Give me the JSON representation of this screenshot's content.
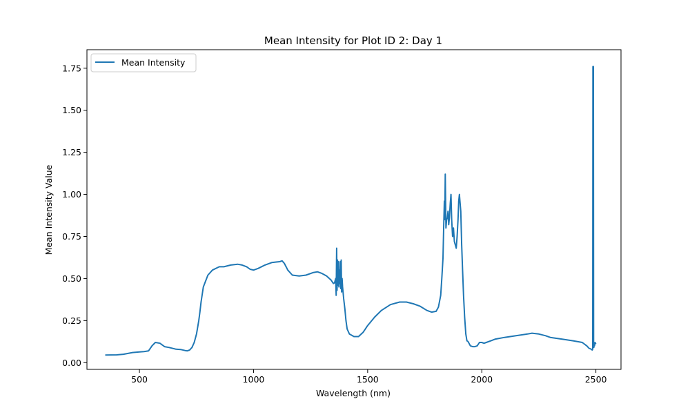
{
  "chart_data": {
    "type": "line",
    "title": "Mean Intensity for Plot ID 2: Day 1",
    "xlabel": "Wavelength (nm)",
    "ylabel": "Mean Intensity Value",
    "xlim": [
      270,
      2610
    ],
    "ylim": [
      -0.04,
      1.86
    ],
    "xticks": [
      {
        "value": 500,
        "label": "500"
      },
      {
        "value": 1000,
        "label": "1000"
      },
      {
        "value": 1500,
        "label": "1500"
      },
      {
        "value": 2000,
        "label": "2000"
      },
      {
        "value": 2500,
        "label": "2500"
      }
    ],
    "yticks": [
      {
        "value": 0.0,
        "label": "0.00"
      },
      {
        "value": 0.25,
        "label": "0.25"
      },
      {
        "value": 0.5,
        "label": "0.50"
      },
      {
        "value": 0.75,
        "label": "0.75"
      },
      {
        "value": 1.0,
        "label": "1.00"
      },
      {
        "value": 1.25,
        "label": "1.25"
      },
      {
        "value": 1.5,
        "label": "1.50"
      },
      {
        "value": 1.75,
        "label": "1.75"
      }
    ],
    "grid": false,
    "legend_position": "upper-left",
    "series": [
      {
        "name": "Mean Intensity",
        "color": "#1f77b4",
        "x": [
          350,
          400,
          430,
          470,
          500,
          520,
          540,
          555,
          570,
          590,
          610,
          630,
          660,
          680,
          700,
          710,
          720,
          730,
          740,
          750,
          760,
          765,
          770,
          780,
          800,
          820,
          850,
          870,
          900,
          930,
          950,
          970,
          985,
          1000,
          1020,
          1050,
          1080,
          1100,
          1115,
          1125,
          1135,
          1150,
          1170,
          1200,
          1230,
          1260,
          1280,
          1300,
          1320,
          1340,
          1350,
          1355,
          1360,
          1362,
          1364,
          1366,
          1368,
          1370,
          1372,
          1374,
          1376,
          1378,
          1380,
          1382,
          1384,
          1386,
          1388,
          1390,
          1395,
          1400,
          1405,
          1410,
          1420,
          1440,
          1460,
          1480,
          1500,
          1530,
          1560,
          1600,
          1640,
          1670,
          1700,
          1730,
          1760,
          1780,
          1800,
          1810,
          1820,
          1825,
          1830,
          1833,
          1836,
          1838,
          1840,
          1843,
          1846,
          1849,
          1852,
          1855,
          1858,
          1862,
          1865,
          1868,
          1872,
          1876,
          1880,
          1884,
          1888,
          1892,
          1896,
          1899,
          1902,
          1905,
          1908,
          1912,
          1916,
          1920,
          1925,
          1930,
          1935,
          1940,
          1950,
          1960,
          1970,
          1980,
          1990,
          2000,
          2010,
          2020,
          2040,
          2060,
          2100,
          2150,
          2200,
          2220,
          2250,
          2280,
          2300,
          2350,
          2400,
          2440,
          2460,
          2470,
          2480,
          2484,
          2486,
          2487,
          2488,
          2489,
          2490,
          2491,
          2492,
          2494,
          2496,
          2500
        ],
        "y": [
          0.045,
          0.046,
          0.05,
          0.06,
          0.064,
          0.066,
          0.07,
          0.1,
          0.12,
          0.115,
          0.095,
          0.09,
          0.08,
          0.078,
          0.072,
          0.07,
          0.075,
          0.09,
          0.12,
          0.17,
          0.25,
          0.3,
          0.36,
          0.45,
          0.52,
          0.55,
          0.57,
          0.57,
          0.58,
          0.585,
          0.58,
          0.57,
          0.555,
          0.55,
          0.56,
          0.58,
          0.595,
          0.598,
          0.6,
          0.605,
          0.59,
          0.55,
          0.52,
          0.515,
          0.52,
          0.535,
          0.54,
          0.53,
          0.515,
          0.49,
          0.47,
          0.475,
          0.5,
          0.4,
          0.68,
          0.43,
          0.61,
          0.46,
          0.6,
          0.45,
          0.55,
          0.47,
          0.6,
          0.44,
          0.61,
          0.42,
          0.5,
          0.45,
          0.38,
          0.32,
          0.25,
          0.2,
          0.17,
          0.155,
          0.155,
          0.18,
          0.22,
          0.27,
          0.31,
          0.345,
          0.36,
          0.36,
          0.35,
          0.335,
          0.31,
          0.3,
          0.305,
          0.33,
          0.4,
          0.5,
          0.62,
          0.8,
          0.96,
          0.85,
          1.12,
          0.8,
          0.85,
          0.86,
          0.9,
          0.82,
          0.86,
          0.95,
          1.0,
          0.85,
          0.75,
          0.8,
          0.72,
          0.7,
          0.68,
          0.75,
          0.85,
          0.96,
          1.0,
          0.95,
          0.9,
          0.7,
          0.55,
          0.4,
          0.27,
          0.17,
          0.13,
          0.125,
          0.1,
          0.095,
          0.095,
          0.1,
          0.12,
          0.12,
          0.115,
          0.12,
          0.13,
          0.14,
          0.15,
          0.16,
          0.17,
          0.175,
          0.17,
          0.16,
          0.15,
          0.14,
          0.13,
          0.12,
          0.1,
          0.085,
          0.08,
          0.075,
          0.08,
          1.76,
          0.1,
          1.76,
          0.12,
          0.09,
          0.11,
          0.1,
          0.12,
          0.11
        ]
      }
    ]
  }
}
